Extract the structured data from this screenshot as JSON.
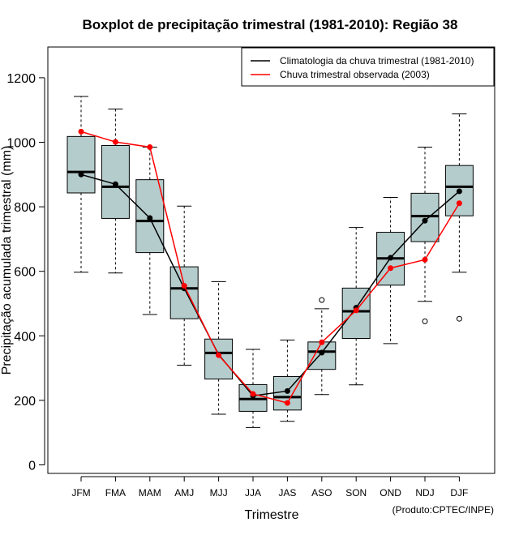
{
  "chart_data": {
    "type": "boxplot",
    "title": "Boxplot de precipitação trimestral (1981-2010): Região 38",
    "xlabel": "Trimestre",
    "ylabel": "Precipitação acumulada trimestral (mm)",
    "ylim": [
      0,
      1250
    ],
    "yticks": [
      0,
      200,
      400,
      600,
      800,
      1000,
      1200
    ],
    "categories": [
      "JFM",
      "FMA",
      "MAM",
      "AMJ",
      "MJJ",
      "JJA",
      "JAS",
      "ASO",
      "SON",
      "OND",
      "NDJ",
      "DJF"
    ],
    "boxes": [
      {
        "whisker_low": 597,
        "q1": 843,
        "median": 908,
        "q3": 1018,
        "whisker_high": 1142,
        "outliers": []
      },
      {
        "whisker_low": 595,
        "q1": 764,
        "median": 862,
        "q3": 990,
        "whisker_high": 1103,
        "outliers": []
      },
      {
        "whisker_low": 466,
        "q1": 658,
        "median": 756,
        "q3": 884,
        "whisker_high": 985,
        "outliers": []
      },
      {
        "whisker_low": 309,
        "q1": 453,
        "median": 547,
        "q3": 614,
        "whisker_high": 802,
        "outliers": []
      },
      {
        "whisker_low": 157,
        "q1": 266,
        "median": 347,
        "q3": 390,
        "whisker_high": 568,
        "outliers": []
      },
      {
        "whisker_low": 116,
        "q1": 166,
        "median": 204,
        "q3": 249,
        "whisker_high": 358,
        "outliers": []
      },
      {
        "whisker_low": 135,
        "q1": 170,
        "median": 210,
        "q3": 274,
        "whisker_high": 387,
        "outliers": []
      },
      {
        "whisker_low": 218,
        "q1": 296,
        "median": 351,
        "q3": 381,
        "whisker_high": 484,
        "outliers": [
          511
        ]
      },
      {
        "whisker_low": 248,
        "q1": 392,
        "median": 476,
        "q3": 548,
        "whisker_high": 736,
        "outliers": []
      },
      {
        "whisker_low": 376,
        "q1": 557,
        "median": 640,
        "q3": 721,
        "whisker_high": 829,
        "outliers": []
      },
      {
        "whisker_low": 507,
        "q1": 692,
        "median": 771,
        "q3": 842,
        "whisker_high": 985,
        "outliers": [
          445
        ]
      },
      {
        "whisker_low": 597,
        "q1": 772,
        "median": 862,
        "q3": 928,
        "whisker_high": 1088,
        "outliers": [
          453
        ]
      }
    ],
    "series": [
      {
        "name": "Climatologia da chuva trimestral (1981-2010)",
        "color": "#000000",
        "values": [
          900,
          870,
          765,
          547,
          342,
          214,
          229,
          348,
          487,
          642,
          757,
          848
        ]
      },
      {
        "name": "Chuva trimestral observada (2003)",
        "color": "#ff0000",
        "values": [
          1033,
          1001,
          985,
          555,
          340,
          220,
          192,
          380,
          479,
          610,
          636,
          811
        ]
      }
    ],
    "box_fill": "#b5cccc",
    "legend": {
      "position": "top-right"
    },
    "credit": "(Produto:CPTEC/INPE)"
  }
}
